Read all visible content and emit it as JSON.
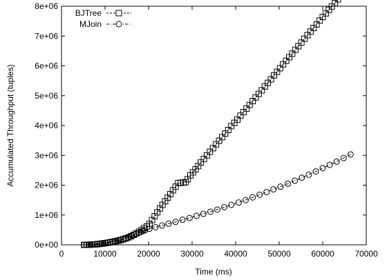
{
  "chart_data": {
    "type": "line",
    "xlabel": "Time (ms)",
    "ylabel": "Accumulated Throughput (tuples)",
    "xlim": [
      0,
      70000
    ],
    "ylim": [
      0,
      8000000
    ],
    "x_ticks": [
      "0",
      "10000",
      "20000",
      "30000",
      "40000",
      "50000",
      "60000",
      "70000"
    ],
    "y_ticks": [
      "0e+00",
      "1e+06",
      "2e+06",
      "3e+06",
      "4e+06",
      "5e+06",
      "6e+06",
      "7e+06",
      "8e+06"
    ],
    "x_tick_values": [
      0,
      10000,
      20000,
      30000,
      40000,
      50000,
      60000,
      70000
    ],
    "y_tick_values": [
      0,
      1000000,
      2000000,
      3000000,
      4000000,
      5000000,
      6000000,
      7000000,
      8000000
    ],
    "grid": false,
    "legend_position": "top-left",
    "series": [
      {
        "name": "BJTree",
        "marker": "square",
        "x": [
          5200,
          5800,
          6400,
          7000,
          7600,
          8200,
          8800,
          9400,
          10000,
          10600,
          11200,
          11800,
          12400,
          13000,
          13600,
          14200,
          14800,
          15400,
          16000,
          16600,
          17200,
          17800,
          18400,
          19000,
          19600,
          20200,
          20800,
          21400,
          22000,
          22600,
          23200,
          23800,
          24400,
          25000,
          25600,
          26200,
          26800,
          27400,
          28000,
          28500,
          29000,
          29600,
          30200,
          30800,
          31400,
          32000,
          32700,
          33400,
          34100,
          34800,
          35500,
          36200,
          36900,
          37600,
          38300,
          39000,
          39700,
          40400,
          41100,
          41800,
          42500,
          43200,
          43900,
          44600,
          45300,
          46000,
          46700,
          47400,
          48100,
          48800,
          49500,
          50200,
          50900,
          51600,
          52300,
          53000,
          53700,
          54400,
          55100,
          55800,
          56500,
          57200,
          57900,
          58600,
          59300,
          60000,
          60700,
          61400,
          62100,
          62800,
          63500,
          64200,
          64900,
          65600
        ],
        "y": [
          0,
          0,
          5000,
          10000,
          15000,
          20000,
          30000,
          40000,
          55000,
          70000,
          85000,
          100000,
          120000,
          140000,
          160000,
          185000,
          215000,
          250000,
          290000,
          335000,
          385000,
          440000,
          500000,
          560000,
          620000,
          700000,
          830000,
          960000,
          1090000,
          1220000,
          1340000,
          1460000,
          1580000,
          1700000,
          1830000,
          1950000,
          2070000,
          2080000,
          2090000,
          2100000,
          2200000,
          2330000,
          2430000,
          2530000,
          2640000,
          2760000,
          2880000,
          3000000,
          3120000,
          3240000,
          3370000,
          3490000,
          3610000,
          3730000,
          3850000,
          3980000,
          4090000,
          4200000,
          4330000,
          4450000,
          4570000,
          4690000,
          4820000,
          4940000,
          5060000,
          5180000,
          5310000,
          5430000,
          5550000,
          5680000,
          5800000,
          5920000,
          6050000,
          6170000,
          6290000,
          6410000,
          6540000,
          6660000,
          6780000,
          6910000,
          7030000,
          7150000,
          7270000,
          7390000,
          7520000,
          7640000,
          7760000,
          7880000,
          7990000,
          8100000,
          8230000,
          8350000,
          8470000,
          8600000
        ]
      },
      {
        "name": "MJoin",
        "marker": "circle",
        "x": [
          5200,
          5700,
          6200,
          6700,
          7200,
          7700,
          8200,
          8700,
          9200,
          9700,
          10200,
          10700,
          11200,
          11700,
          12200,
          12700,
          13200,
          13700,
          14200,
          14700,
          15200,
          15700,
          16200,
          16700,
          17200,
          17700,
          18200,
          18700,
          19200,
          20200,
          21600,
          23100,
          24600,
          26200,
          27800,
          29400,
          31000,
          32600,
          34200,
          35800,
          37400,
          39000,
          40700,
          42300,
          43900,
          45500,
          47100,
          48700,
          50300,
          52000,
          53600,
          55200,
          56800,
          58400,
          60000,
          61600,
          63200,
          64800,
          66400
        ],
        "y": [
          0,
          0,
          5000,
          10000,
          15000,
          20000,
          30000,
          40000,
          50000,
          60000,
          70000,
          80000,
          95000,
          110000,
          125000,
          140000,
          160000,
          180000,
          200000,
          220000,
          250000,
          280000,
          310000,
          340000,
          370000,
          400000,
          430000,
          460000,
          490000,
          540000,
          590000,
          650000,
          710000,
          770000,
          840000,
          900000,
          970000,
          1040000,
          1110000,
          1180000,
          1260000,
          1340000,
          1420000,
          1500000,
          1590000,
          1680000,
          1770000,
          1860000,
          1950000,
          2050000,
          2150000,
          2250000,
          2350000,
          2460000,
          2570000,
          2680000,
          2790000,
          2910000,
          3030000
        ]
      }
    ]
  }
}
